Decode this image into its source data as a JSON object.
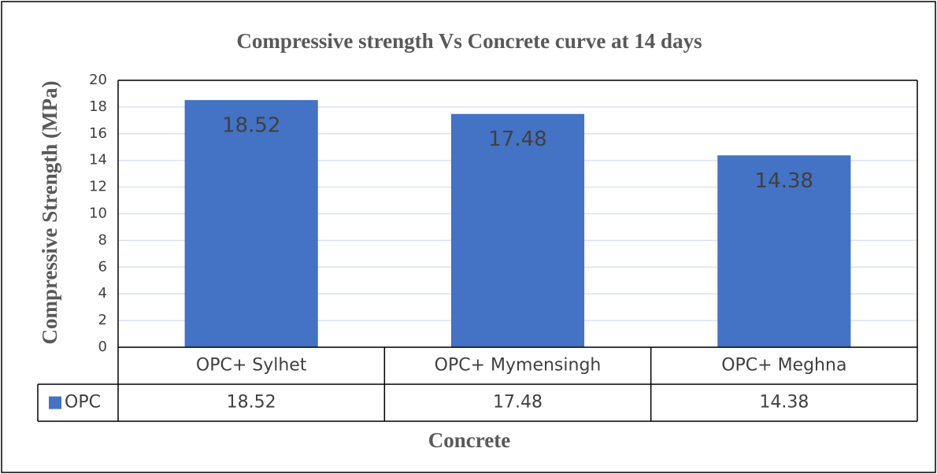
{
  "chart_data": {
    "type": "bar",
    "title": "Compressive strength Vs Concrete curve at 14 days",
    "x_label": "Concrete",
    "y_label": "Compressive Strength (MPa)",
    "categories": [
      "OPC+ Sylhet",
      "OPC+ Mymensingh",
      "OPC+ Meghna"
    ],
    "series": [
      {
        "name": "OPC",
        "color": "#4472c4",
        "values": [
          18.52,
          17.48,
          14.38
        ]
      }
    ],
    "ylim": [
      0,
      20
    ],
    "yticks": [
      0,
      2,
      4,
      6,
      8,
      10,
      12,
      14,
      16,
      18,
      20
    ],
    "grid": true,
    "data_table": true
  }
}
